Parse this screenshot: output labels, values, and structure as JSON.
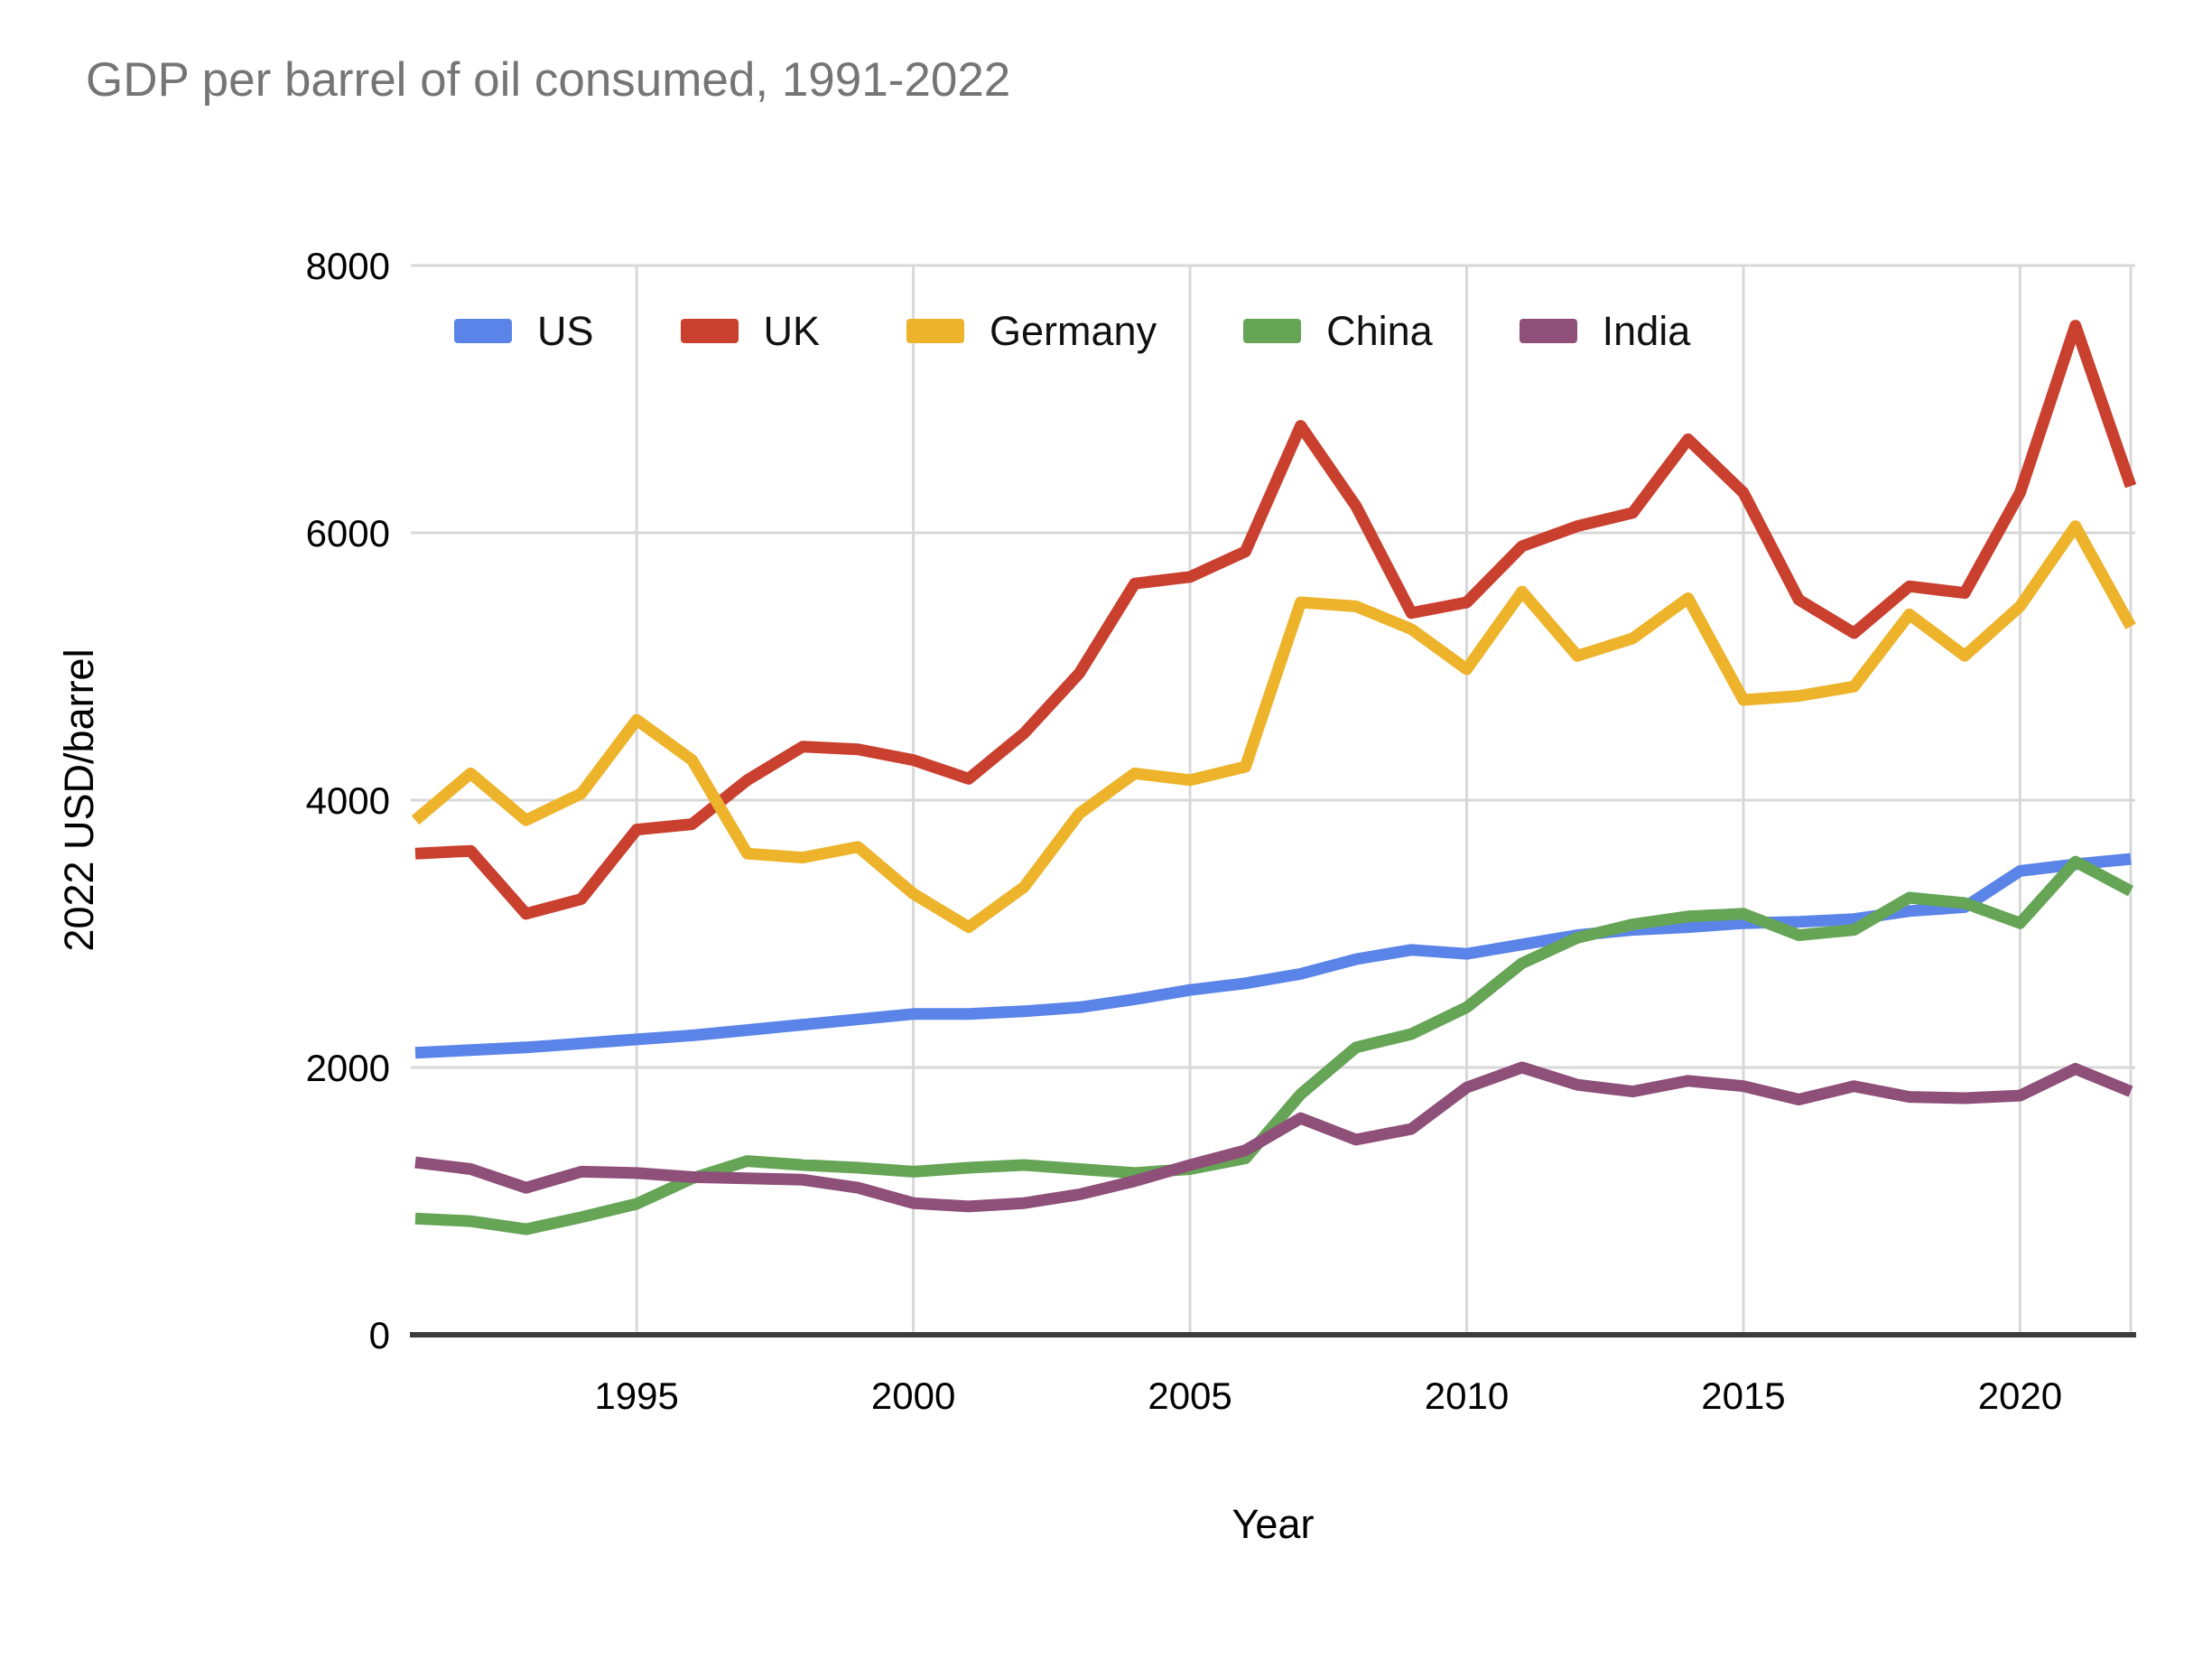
{
  "title": "GDP per barrel of oil consumed, 1991-2022",
  "colors": {
    "us": "#5B84E8",
    "uk": "#C9402F",
    "germany": "#EDB32A",
    "china": "#66A456",
    "india": "#8E4F78",
    "grid": "#D8D8D8",
    "axis": "#3C3C3C",
    "title_text": "#757575",
    "tick_text": "#000000"
  },
  "chart_data": {
    "type": "line",
    "title": "GDP per barrel of oil consumed, 1991-2022",
    "xlabel": "Year",
    "ylabel": "2022 USD/barrel",
    "xlim": [
      1991,
      2022
    ],
    "ylim": [
      0,
      8000
    ],
    "x_ticks": [
      1995,
      2000,
      2005,
      2010,
      2015,
      2020
    ],
    "y_ticks": [
      0,
      2000,
      4000,
      6000,
      8000
    ],
    "grid": true,
    "legend_position": "top-left-inside",
    "x": [
      1991,
      1992,
      1993,
      1994,
      1995,
      1996,
      1997,
      1998,
      1999,
      2000,
      2001,
      2002,
      2003,
      2004,
      2005,
      2006,
      2007,
      2008,
      2009,
      2010,
      2011,
      2012,
      2013,
      2014,
      2015,
      2016,
      2017,
      2018,
      2019,
      2020,
      2021,
      2022
    ],
    "series": [
      {
        "name": "US",
        "color_key": "us",
        "values": [
          2110,
          2130,
          2150,
          2180,
          2210,
          2240,
          2280,
          2320,
          2360,
          2400,
          2400,
          2420,
          2450,
          2510,
          2580,
          2630,
          2700,
          2810,
          2880,
          2850,
          2920,
          2990,
          3030,
          3050,
          3080,
          3090,
          3110,
          3170,
          3200,
          3470,
          3520,
          3560
        ]
      },
      {
        "name": "UK",
        "color_key": "uk",
        "values": [
          3600,
          3620,
          3150,
          3260,
          3780,
          3820,
          4150,
          4400,
          4380,
          4300,
          4160,
          4500,
          4950,
          5620,
          5670,
          5860,
          6800,
          6200,
          5400,
          5480,
          5900,
          6050,
          6150,
          6700,
          6300,
          5500,
          5250,
          5600,
          5550,
          6300,
          7550,
          6350
        ]
      },
      {
        "name": "Germany",
        "color_key": "germany",
        "values": [
          3850,
          4200,
          3850,
          4050,
          4600,
          4300,
          3600,
          3570,
          3650,
          3300,
          3050,
          3350,
          3900,
          4200,
          4150,
          4250,
          5480,
          5450,
          5280,
          4980,
          5560,
          5080,
          5210,
          5510,
          4750,
          4780,
          4850,
          5390,
          5080,
          5450,
          6050,
          5300
        ]
      },
      {
        "name": "China",
        "color_key": "china",
        "values": [
          870,
          850,
          790,
          880,
          980,
          1170,
          1300,
          1270,
          1250,
          1220,
          1250,
          1270,
          1240,
          1210,
          1240,
          1320,
          1800,
          2150,
          2250,
          2450,
          2780,
          2970,
          3070,
          3130,
          3150,
          2990,
          3030,
          3270,
          3230,
          3080,
          3540,
          3320
        ]
      },
      {
        "name": "India",
        "color_key": "india",
        "values": [
          1290,
          1240,
          1100,
          1220,
          1210,
          1180,
          1170,
          1160,
          1100,
          985,
          960,
          985,
          1050,
          1150,
          1270,
          1380,
          1620,
          1460,
          1540,
          1850,
          2000,
          1870,
          1820,
          1900,
          1860,
          1760,
          1860,
          1780,
          1770,
          1790,
          1990,
          1820
        ]
      }
    ]
  }
}
